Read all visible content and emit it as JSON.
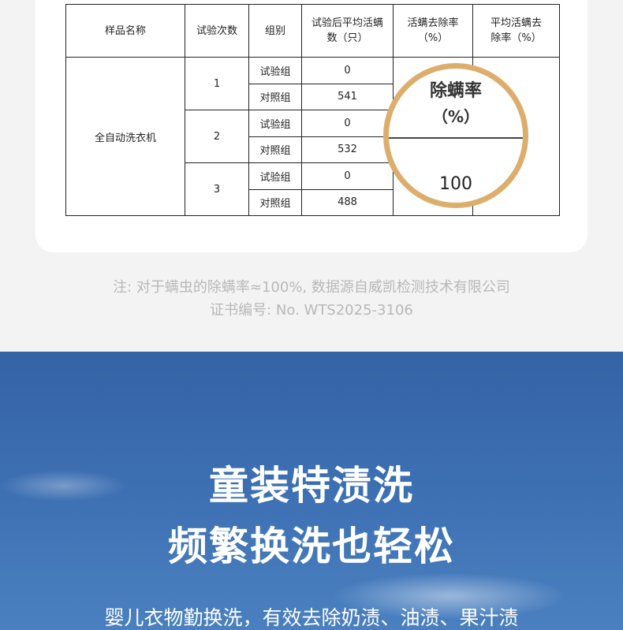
{
  "table": {
    "headers": [
      "样品名称",
      "试验次数",
      "组别",
      "试验后平均活螨数（只）",
      "活螨去除率（%）",
      "平均活螨去除率（%）"
    ],
    "sample": "全自动洗衣机",
    "trials": [
      {
        "n": "1",
        "rows": [
          {
            "group": "试验组",
            "count": "0"
          },
          {
            "group": "对照组",
            "count": "541"
          }
        ]
      },
      {
        "n": "2",
        "rows": [
          {
            "group": "试验组",
            "count": "0"
          },
          {
            "group": "对照组",
            "count": "532"
          }
        ]
      },
      {
        "n": "3",
        "rows": [
          {
            "group": "试验组",
            "count": "0"
          },
          {
            "group": "对照组",
            "count": "488"
          }
        ]
      }
    ]
  },
  "magnifier": {
    "title": "除螨率",
    "unit": "（%）",
    "value": "100"
  },
  "notes": [
    "注: 对于螨虫的除螨率≈100%, 数据源自威凯检测技术有限公司",
    "证书编号: No. WTS2025-3106"
  ],
  "banner": {
    "line1": "童装特渍洗",
    "line2": "频繁换洗也轻松",
    "subtitle": "婴儿衣物勤换洗，有效去除奶渍、油渍、果汁渍"
  },
  "colors": {
    "ring": "#dcae6c",
    "blue": "#3d70b3"
  }
}
